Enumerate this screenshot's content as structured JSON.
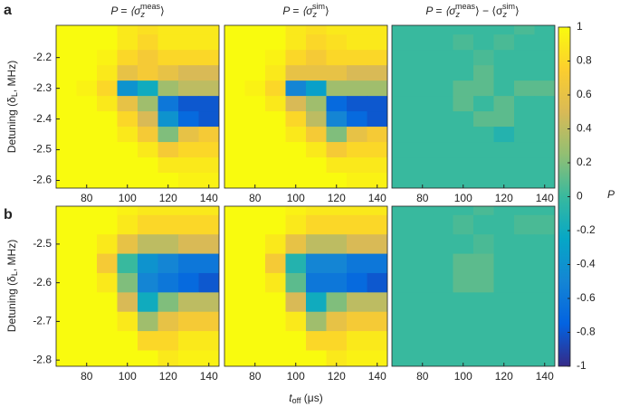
{
  "chart_data": [
    {
      "type": "heatmap",
      "panel_label": "a",
      "title": [
        "P = ⟨σ",
        "z",
        "meas",
        "⟩"
      ],
      "ylabel": [
        "Detuning (δ",
        "L",
        ", MHz)"
      ],
      "xlim": [
        65,
        145
      ],
      "xticks": [
        80,
        100,
        120,
        140
      ],
      "ylim": [
        -2.625,
        -2.095
      ],
      "yticks": [
        -2.2,
        -2.3,
        -2.4,
        -2.5,
        -2.6
      ],
      "x": [
        70,
        80,
        90,
        100,
        110,
        120,
        130,
        140
      ],
      "y": [
        -2.1,
        -2.15,
        -2.2,
        -2.25,
        -2.3,
        -2.35,
        -2.4,
        -2.45,
        -2.5,
        -2.55,
        -2.6
      ],
      "z": [
        [
          1,
          1,
          1,
          0.9,
          0.85,
          0.9,
          0.9,
          0.9
        ],
        [
          1,
          1,
          1,
          0.9,
          0.8,
          0.9,
          0.9,
          0.9
        ],
        [
          1,
          1,
          0.95,
          0.8,
          0.7,
          0.8,
          0.8,
          0.8
        ],
        [
          1,
          1,
          0.9,
          0.6,
          0.7,
          0.6,
          0.5,
          0.5
        ],
        [
          1,
          0.95,
          0.8,
          -0.4,
          -0.2,
          0.3,
          0.4,
          0.4
        ],
        [
          1,
          1,
          0.9,
          0.6,
          0.3,
          -0.6,
          -0.8,
          -0.8
        ],
        [
          1,
          1,
          1,
          0.8,
          0.5,
          -0.4,
          -0.7,
          -0.8
        ],
        [
          1,
          1,
          1,
          0.9,
          0.7,
          0.2,
          0.6,
          0.7
        ],
        [
          1,
          1,
          1,
          1,
          0.9,
          0.7,
          0.8,
          0.8
        ],
        [
          1,
          1,
          1,
          1,
          1,
          0.9,
          0.9,
          0.9
        ],
        [
          1,
          1,
          1,
          1,
          1,
          1,
          0.95,
          0.95
        ]
      ]
    },
    {
      "type": "heatmap",
      "title": [
        "P = ⟨σ",
        "z",
        "sim",
        "⟩"
      ],
      "xlim": [
        65,
        145
      ],
      "xticks": [
        80,
        100,
        120,
        140
      ],
      "ylim": [
        -2.625,
        -2.095
      ],
      "x": [
        70,
        80,
        90,
        100,
        110,
        120,
        130,
        140
      ],
      "y": [
        -2.1,
        -2.15,
        -2.2,
        -2.25,
        -2.3,
        -2.35,
        -2.4,
        -2.45,
        -2.5,
        -2.55,
        -2.6
      ],
      "z": [
        [
          1,
          1,
          1,
          0.9,
          0.85,
          0.9,
          0.9,
          0.9
        ],
        [
          1,
          1,
          1,
          0.9,
          0.8,
          0.85,
          0.9,
          0.9
        ],
        [
          1,
          1,
          0.95,
          0.8,
          0.7,
          0.8,
          0.8,
          0.8
        ],
        [
          1,
          1,
          0.9,
          0.6,
          0.6,
          0.6,
          0.5,
          0.5
        ],
        [
          1,
          0.95,
          0.8,
          -0.5,
          -0.3,
          0.3,
          0.3,
          0.3
        ],
        [
          1,
          1,
          0.9,
          0.5,
          0.3,
          -0.7,
          -0.8,
          -0.8
        ],
        [
          1,
          1,
          1,
          0.8,
          0.4,
          -0.5,
          -0.7,
          -0.8
        ],
        [
          1,
          1,
          1,
          0.9,
          0.7,
          0.2,
          0.6,
          0.7
        ],
        [
          1,
          1,
          1,
          1,
          0.9,
          0.7,
          0.8,
          0.8
        ],
        [
          1,
          1,
          1,
          1,
          1,
          0.9,
          0.9,
          0.9
        ],
        [
          1,
          1,
          1,
          1,
          1,
          1,
          0.95,
          0.95
        ]
      ]
    },
    {
      "type": "heatmap",
      "title": [
        "P = ⟨σ",
        "z",
        "meas",
        "⟩ − ⟨σ",
        "z",
        "sim",
        "⟩"
      ],
      "xlim": [
        65,
        145
      ],
      "xticks": [
        80,
        100,
        120,
        140
      ],
      "ylim": [
        -2.625,
        -2.095
      ],
      "x": [
        70,
        80,
        90,
        100,
        110,
        120,
        130,
        140
      ],
      "y": [
        -2.1,
        -2.15,
        -2.2,
        -2.25,
        -2.3,
        -2.35,
        -2.4,
        -2.45,
        -2.5,
        -2.55,
        -2.6
      ],
      "z": [
        [
          0,
          0,
          0,
          0,
          0,
          0,
          0.05,
          0
        ],
        [
          0,
          0,
          0,
          0.05,
          0,
          0.05,
          0,
          0
        ],
        [
          0,
          0,
          0,
          0,
          0.05,
          0,
          0,
          0
        ],
        [
          0,
          0,
          0,
          0,
          0.1,
          0,
          0,
          0
        ],
        [
          0,
          0,
          0,
          0.1,
          0.1,
          0,
          0.1,
          0.1
        ],
        [
          0,
          0,
          0,
          0.1,
          0,
          0.1,
          0,
          0
        ],
        [
          0,
          0,
          0,
          0,
          0.1,
          0.1,
          0,
          0
        ],
        [
          0,
          0,
          0,
          0,
          0,
          -0.1,
          0,
          0
        ],
        [
          0,
          0,
          0,
          0,
          0,
          0,
          0,
          0
        ],
        [
          0,
          0,
          0,
          0,
          0,
          0,
          0,
          0
        ],
        [
          0,
          0,
          0,
          0,
          0,
          0,
          0,
          0
        ]
      ]
    },
    {
      "type": "heatmap",
      "panel_label": "b",
      "ylabel": [
        "Detuning (δ",
        "L",
        ", MHz)"
      ],
      "xlim": [
        65,
        145
      ],
      "xticks": [
        80,
        100,
        120,
        140
      ],
      "ylim": [
        -2.816,
        -2.402
      ],
      "yticks": [
        -2.5,
        -2.6,
        -2.7,
        -2.8
      ],
      "x": [
        70,
        80,
        90,
        100,
        110,
        120,
        130,
        140
      ],
      "y": [
        -2.4,
        -2.45,
        -2.5,
        -2.55,
        -2.6,
        -2.65,
        -2.7,
        -2.75,
        -2.8
      ],
      "z": [
        [
          1,
          1,
          1,
          0.95,
          0.9,
          0.9,
          0.9,
          0.9
        ],
        [
          1,
          1,
          1,
          0.9,
          0.8,
          0.8,
          0.8,
          0.8
        ],
        [
          1,
          1,
          0.9,
          0.6,
          0.4,
          0.4,
          0.5,
          0.5
        ],
        [
          1,
          1,
          0.7,
          0,
          -0.4,
          -0.5,
          -0.6,
          -0.6
        ],
        [
          1,
          1,
          0.9,
          0.2,
          -0.5,
          -0.6,
          -0.7,
          -0.8
        ],
        [
          1,
          1,
          1,
          0.5,
          -0.2,
          0.2,
          0.4,
          0.4
        ],
        [
          1,
          1,
          1,
          0.9,
          0.3,
          0.6,
          0.7,
          0.7
        ],
        [
          1,
          1,
          1,
          1,
          0.8,
          0.8,
          0.9,
          0.9
        ],
        [
          1,
          1,
          1,
          1,
          1,
          0.9,
          0.95,
          0.95
        ]
      ]
    },
    {
      "type": "heatmap",
      "xlabel": [
        "t",
        "off",
        " (μs)"
      ],
      "xlim": [
        65,
        145
      ],
      "xticks": [
        80,
        100,
        120,
        140
      ],
      "ylim": [
        -2.816,
        -2.402
      ],
      "x": [
        70,
        80,
        90,
        100,
        110,
        120,
        130,
        140
      ],
      "y": [
        -2.4,
        -2.45,
        -2.5,
        -2.55,
        -2.6,
        -2.65,
        -2.7,
        -2.75,
        -2.8
      ],
      "z": [
        [
          1,
          1,
          1,
          0.95,
          0.9,
          0.9,
          0.9,
          0.9
        ],
        [
          1,
          1,
          1,
          0.9,
          0.8,
          0.8,
          0.8,
          0.8
        ],
        [
          1,
          1,
          0.9,
          0.6,
          0.4,
          0.4,
          0.5,
          0.5
        ],
        [
          1,
          1,
          0.7,
          -0.1,
          -0.5,
          -0.5,
          -0.6,
          -0.6
        ],
        [
          1,
          1,
          0.9,
          0.1,
          -0.6,
          -0.6,
          -0.7,
          -0.8
        ],
        [
          1,
          1,
          1,
          0.5,
          -0.2,
          0.2,
          0.4,
          0.4
        ],
        [
          1,
          1,
          1,
          0.9,
          0.3,
          0.6,
          0.7,
          0.7
        ],
        [
          1,
          1,
          1,
          1,
          0.8,
          0.8,
          0.9,
          0.9
        ],
        [
          1,
          1,
          1,
          1,
          1,
          0.9,
          0.95,
          0.95
        ]
      ]
    },
    {
      "type": "heatmap",
      "xlim": [
        65,
        145
      ],
      "xticks": [
        80,
        100,
        120,
        140
      ],
      "ylim": [
        -2.816,
        -2.402
      ],
      "x": [
        70,
        80,
        90,
        100,
        110,
        120,
        130,
        140
      ],
      "y": [
        -2.4,
        -2.45,
        -2.5,
        -2.55,
        -2.6,
        -2.65,
        -2.7,
        -2.75,
        -2.8
      ],
      "z": [
        [
          0,
          0,
          0,
          0,
          0.05,
          0,
          0,
          0
        ],
        [
          0,
          0,
          0,
          0.05,
          0,
          0,
          0.05,
          0.05
        ],
        [
          0,
          0,
          0,
          0,
          0.05,
          0,
          0,
          0
        ],
        [
          0,
          0,
          0,
          0.1,
          0.1,
          0,
          0,
          0
        ],
        [
          0,
          0,
          0,
          0.1,
          0.1,
          0,
          0,
          0
        ],
        [
          0,
          0,
          0,
          0,
          0,
          0,
          0,
          0
        ],
        [
          0,
          0,
          0,
          0,
          0,
          0,
          0,
          0
        ],
        [
          0,
          0,
          0,
          0,
          0,
          0,
          0,
          0
        ],
        [
          0,
          0,
          0,
          0,
          0,
          0,
          0,
          0
        ]
      ]
    },
    {
      "type": "colorbar",
      "label": "P",
      "ylim": [
        -1,
        1
      ],
      "yticks": [
        -1,
        -0.8,
        -0.6,
        -0.4,
        -0.2,
        0,
        0.2,
        0.4,
        0.6,
        0.8,
        1
      ],
      "colormap": [
        "#352a87",
        "#0363e1",
        "#1485d4",
        "#06a7c6",
        "#38b99e",
        "#92bf73",
        "#d9ba56",
        "#fcce2e",
        "#f9fb0e"
      ]
    }
  ]
}
